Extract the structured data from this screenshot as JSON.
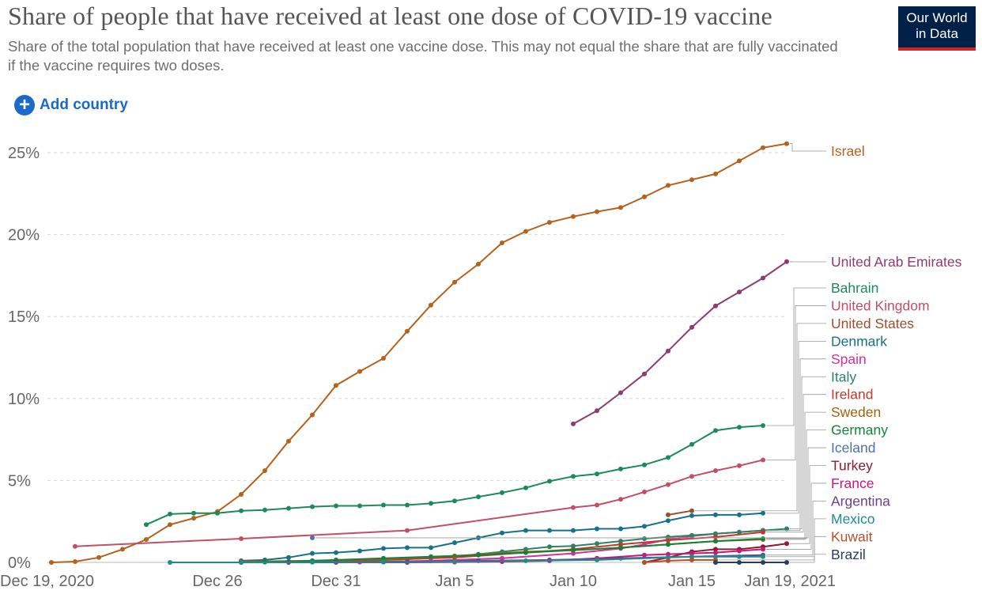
{
  "header": {
    "title": "Share of people that have received at least one dose of COVID-19 vaccine",
    "subtitle": "Share of the total population that have received at least one vaccine dose. This may not equal the share that are fully vaccinated if the vaccine requires two doses.",
    "logo_line1": "Our World",
    "logo_line2": "in Data"
  },
  "controls": {
    "add_country_label": "Add country"
  },
  "colors": {
    "logo_bg": "#002147",
    "logo_accent": "#ce261e",
    "link": "#1b6ac9",
    "grid": "#d9d9d9"
  },
  "chart_data": {
    "type": "line",
    "x_type": "date",
    "x_range": [
      "2020-12-19",
      "2021-01-19"
    ],
    "y_range": [
      0,
      27
    ],
    "y_ticks": [
      0,
      5,
      10,
      15,
      20,
      25
    ],
    "y_tick_labels": [
      "0%",
      "5%",
      "10%",
      "15%",
      "20%",
      "25%"
    ],
    "x_ticks": [
      "2020-12-19",
      "2020-12-26",
      "2020-12-31",
      "2021-01-05",
      "2021-01-10",
      "2021-01-15",
      "2021-01-19"
    ],
    "x_tick_labels": [
      "Dec 19, 2020",
      "Dec 26",
      "Dec 31",
      "Jan 5",
      "Jan 10",
      "Jan 15",
      "Jan 19, 2021"
    ],
    "grid": "horizontal dashed",
    "legend": "right, labels at line ends",
    "series": [
      {
        "name": "Israel",
        "color": "#b5621c",
        "points": [
          [
            "2020-12-19",
            0
          ],
          [
            "2020-12-20",
            0.05
          ],
          [
            "2020-12-21",
            0.3
          ],
          [
            "2020-12-22",
            0.8
          ],
          [
            "2020-12-23",
            1.4
          ],
          [
            "2020-12-24",
            2.3
          ],
          [
            "2020-12-25",
            2.7
          ],
          [
            "2020-12-26",
            3.1
          ],
          [
            "2020-12-27",
            4.15
          ],
          [
            "2020-12-28",
            5.6
          ],
          [
            "2020-12-29",
            7.4
          ],
          [
            "2020-12-30",
            9.0
          ],
          [
            "2020-12-31",
            10.8
          ],
          [
            "2021-01-01",
            11.65
          ],
          [
            "2021-01-02",
            12.45
          ],
          [
            "2021-01-03",
            14.1
          ],
          [
            "2021-01-04",
            15.7
          ],
          [
            "2021-01-05",
            17.1
          ],
          [
            "2021-01-06",
            18.2
          ],
          [
            "2021-01-07",
            19.5
          ],
          [
            "2021-01-08",
            20.2
          ],
          [
            "2021-01-09",
            20.75
          ],
          [
            "2021-01-10",
            21.1
          ],
          [
            "2021-01-11",
            21.4
          ],
          [
            "2021-01-12",
            21.65
          ],
          [
            "2021-01-13",
            22.3
          ],
          [
            "2021-01-14",
            23.0
          ],
          [
            "2021-01-15",
            23.35
          ],
          [
            "2021-01-16",
            23.7
          ],
          [
            "2021-01-17",
            24.5
          ],
          [
            "2021-01-18",
            25.3
          ],
          [
            "2021-01-19",
            25.55
          ]
        ]
      },
      {
        "name": "United Arab Emirates",
        "color": "#8e3b6e",
        "points": [
          [
            "2021-01-10",
            8.45
          ],
          [
            "2021-01-11",
            9.25
          ],
          [
            "2021-01-12",
            10.35
          ],
          [
            "2021-01-13",
            11.5
          ],
          [
            "2021-01-14",
            12.9
          ],
          [
            "2021-01-15",
            14.35
          ],
          [
            "2021-01-16",
            15.65
          ],
          [
            "2021-01-17",
            16.5
          ],
          [
            "2021-01-18",
            17.35
          ],
          [
            "2021-01-19",
            18.35
          ]
        ]
      },
      {
        "name": "Bahrain",
        "color": "#1d8a5a",
        "points": [
          [
            "2020-12-23",
            2.3
          ],
          [
            "2020-12-24",
            2.95
          ],
          [
            "2020-12-25",
            3.0
          ],
          [
            "2020-12-26",
            3.0
          ],
          [
            "2020-12-27",
            3.15
          ],
          [
            "2020-12-28",
            3.2
          ],
          [
            "2020-12-29",
            3.3
          ],
          [
            "2020-12-30",
            3.4
          ],
          [
            "2020-12-31",
            3.45
          ],
          [
            "2021-01-01",
            3.45
          ],
          [
            "2021-01-02",
            3.5
          ],
          [
            "2021-01-03",
            3.5
          ],
          [
            "2021-01-04",
            3.6
          ],
          [
            "2021-01-05",
            3.75
          ],
          [
            "2021-01-06",
            4.0
          ],
          [
            "2021-01-07",
            4.25
          ],
          [
            "2021-01-08",
            4.55
          ],
          [
            "2021-01-09",
            4.95
          ],
          [
            "2021-01-10",
            5.25
          ],
          [
            "2021-01-11",
            5.4
          ],
          [
            "2021-01-12",
            5.7
          ],
          [
            "2021-01-13",
            5.95
          ],
          [
            "2021-01-14",
            6.4
          ],
          [
            "2021-01-15",
            7.2
          ],
          [
            "2021-01-16",
            8.05
          ],
          [
            "2021-01-17",
            8.25
          ],
          [
            "2021-01-18",
            8.35
          ]
        ]
      },
      {
        "name": "United Kingdom",
        "color": "#c15065",
        "points": [
          [
            "2020-12-20",
            0.98
          ],
          [
            "2020-12-27",
            1.45
          ],
          [
            "2021-01-03",
            1.95
          ],
          [
            "2021-01-10",
            3.35
          ],
          [
            "2021-01-11",
            3.5
          ],
          [
            "2021-01-12",
            3.85
          ],
          [
            "2021-01-13",
            4.3
          ],
          [
            "2021-01-14",
            4.75
          ],
          [
            "2021-01-15",
            5.25
          ],
          [
            "2021-01-16",
            5.6
          ],
          [
            "2021-01-17",
            5.9
          ],
          [
            "2021-01-18",
            6.25
          ]
        ]
      },
      {
        "name": "United States",
        "color": "#9a5129",
        "points": [
          [
            "2021-01-14",
            2.9
          ],
          [
            "2021-01-15",
            3.15
          ]
        ]
      },
      {
        "name": "Denmark",
        "color": "#18708b",
        "points": [
          [
            "2020-12-27",
            0.1
          ],
          [
            "2020-12-28",
            0.15
          ],
          [
            "2020-12-29",
            0.3
          ],
          [
            "2020-12-30",
            0.55
          ],
          [
            "2020-12-31",
            0.6
          ],
          [
            "2021-01-01",
            0.7
          ],
          [
            "2021-01-02",
            0.85
          ],
          [
            "2021-01-03",
            0.9
          ],
          [
            "2021-01-04",
            0.9
          ],
          [
            "2021-01-05",
            1.2
          ],
          [
            "2021-01-06",
            1.5
          ],
          [
            "2021-01-07",
            1.8
          ],
          [
            "2021-01-08",
            1.95
          ],
          [
            "2021-01-09",
            1.95
          ],
          [
            "2021-01-10",
            1.95
          ],
          [
            "2021-01-11",
            2.05
          ],
          [
            "2021-01-12",
            2.05
          ],
          [
            "2021-01-13",
            2.2
          ],
          [
            "2021-01-14",
            2.55
          ],
          [
            "2021-01-15",
            2.85
          ],
          [
            "2021-01-16",
            2.9
          ],
          [
            "2021-01-17",
            2.9
          ],
          [
            "2021-01-18",
            3.0
          ]
        ]
      },
      {
        "name": "Spain",
        "color": "#d62fa0",
        "points": [
          [
            "2021-01-01",
            0.02
          ],
          [
            "2021-01-04",
            0.1
          ],
          [
            "2021-01-07",
            0.25
          ],
          [
            "2021-01-10",
            0.55
          ],
          [
            "2021-01-12",
            0.85
          ],
          [
            "2021-01-13",
            1.1
          ],
          [
            "2021-01-14",
            1.4
          ],
          [
            "2021-01-15",
            1.6
          ],
          [
            "2021-01-16",
            1.75
          ],
          [
            "2021-01-17",
            1.85
          ],
          [
            "2021-01-18",
            1.95
          ]
        ]
      },
      {
        "name": "Italy",
        "color": "#2c8465",
        "points": [
          [
            "2020-12-27",
            0.02
          ],
          [
            "2020-12-31",
            0.05
          ],
          [
            "2021-01-03",
            0.2
          ],
          [
            "2021-01-05",
            0.35
          ],
          [
            "2021-01-06",
            0.5
          ],
          [
            "2021-01-07",
            0.65
          ],
          [
            "2021-01-08",
            0.8
          ],
          [
            "2021-01-09",
            0.95
          ],
          [
            "2021-01-10",
            1.0
          ],
          [
            "2021-01-11",
            1.15
          ],
          [
            "2021-01-12",
            1.3
          ],
          [
            "2021-01-13",
            1.45
          ],
          [
            "2021-01-14",
            1.55
          ],
          [
            "2021-01-15",
            1.65
          ],
          [
            "2021-01-16",
            1.75
          ],
          [
            "2021-01-17",
            1.85
          ],
          [
            "2021-01-18",
            1.95
          ],
          [
            "2021-01-19",
            2.05
          ]
        ]
      },
      {
        "name": "Ireland",
        "color": "#c0392b",
        "points": [
          [
            "2020-12-31",
            0.05
          ],
          [
            "2021-01-05",
            0.3
          ],
          [
            "2021-01-10",
            0.8
          ],
          [
            "2021-01-12",
            1.1
          ],
          [
            "2021-01-14",
            1.35
          ],
          [
            "2021-01-16",
            1.55
          ],
          [
            "2021-01-18",
            1.85
          ]
        ]
      },
      {
        "name": "Sweden",
        "color": "#a2620d",
        "points": [
          [
            "2020-12-27",
            0.05
          ],
          [
            "2020-12-30",
            0.1
          ],
          [
            "2021-01-02",
            0.2
          ],
          [
            "2021-01-05",
            0.4
          ],
          [
            "2021-01-08",
            0.65
          ],
          [
            "2021-01-10",
            0.75
          ],
          [
            "2021-01-12",
            0.9
          ],
          [
            "2021-01-14",
            1.1
          ],
          [
            "2021-01-16",
            1.3
          ],
          [
            "2021-01-18",
            1.4
          ]
        ]
      },
      {
        "name": "Germany",
        "color": "#13833a",
        "points": [
          [
            "2020-12-27",
            0.0
          ],
          [
            "2020-12-28",
            0.02
          ],
          [
            "2020-12-29",
            0.05
          ],
          [
            "2020-12-30",
            0.1
          ],
          [
            "2020-12-31",
            0.15
          ],
          [
            "2021-01-02",
            0.25
          ],
          [
            "2021-01-04",
            0.35
          ],
          [
            "2021-01-06",
            0.45
          ],
          [
            "2021-01-08",
            0.6
          ],
          [
            "2021-01-10",
            0.75
          ],
          [
            "2021-01-12",
            0.9
          ],
          [
            "2021-01-14",
            1.1
          ],
          [
            "2021-01-16",
            1.3
          ],
          [
            "2021-01-18",
            1.45
          ]
        ]
      },
      {
        "name": "Iceland",
        "color": "#4a73a8",
        "points": [
          [
            "2020-12-30",
            1.5
          ]
        ]
      },
      {
        "name": "Turkey",
        "color": "#8e1b2e",
        "points": [
          [
            "2021-01-13",
            0.0
          ],
          [
            "2021-01-14",
            0.3
          ],
          [
            "2021-01-15",
            0.65
          ],
          [
            "2021-01-16",
            0.8
          ],
          [
            "2021-01-17",
            0.8
          ],
          [
            "2021-01-18",
            0.95
          ],
          [
            "2021-01-19",
            1.15
          ]
        ]
      },
      {
        "name": "France",
        "color": "#c7197b",
        "points": [
          [
            "2020-12-27",
            0.0
          ],
          [
            "2020-12-31",
            0.0
          ],
          [
            "2021-01-03",
            0.0
          ],
          [
            "2021-01-05",
            0.02
          ],
          [
            "2021-01-07",
            0.05
          ],
          [
            "2021-01-09",
            0.1
          ],
          [
            "2021-01-11",
            0.25
          ],
          [
            "2021-01-13",
            0.45
          ],
          [
            "2021-01-14",
            0.5
          ],
          [
            "2021-01-15",
            0.55
          ],
          [
            "2021-01-16",
            0.6
          ],
          [
            "2021-01-17",
            0.7
          ],
          [
            "2021-01-18",
            0.8
          ]
        ]
      },
      {
        "name": "Argentina",
        "color": "#6d3e91",
        "points": [
          [
            "2020-12-29",
            0.0
          ],
          [
            "2020-12-31",
            0.02
          ],
          [
            "2021-01-03",
            0.05
          ],
          [
            "2021-01-06",
            0.1
          ],
          [
            "2021-01-09",
            0.15
          ],
          [
            "2021-01-12",
            0.25
          ],
          [
            "2021-01-15",
            0.35
          ],
          [
            "2021-01-18",
            0.45
          ]
        ]
      },
      {
        "name": "Mexico",
        "color": "#1f8c8c",
        "points": [
          [
            "2020-12-24",
            0.0
          ],
          [
            "2020-12-27",
            0.0
          ],
          [
            "2020-12-30",
            0.01
          ],
          [
            "2021-01-02",
            0.02
          ],
          [
            "2021-01-05",
            0.05
          ],
          [
            "2021-01-08",
            0.1
          ],
          [
            "2021-01-11",
            0.15
          ],
          [
            "2021-01-14",
            0.3
          ],
          [
            "2021-01-15",
            0.35
          ],
          [
            "2021-01-16",
            0.35
          ],
          [
            "2021-01-17",
            0.35
          ],
          [
            "2021-01-18",
            0.35
          ]
        ]
      },
      {
        "name": "Kuwait",
        "color": "#b2522c",
        "points": [
          [
            "2021-01-13",
            0.0
          ],
          [
            "2021-01-14",
            0.1
          ],
          [
            "2021-01-15",
            0.15
          ],
          [
            "2021-01-16",
            0.15
          ]
        ]
      },
      {
        "name": "Brazil",
        "color": "#2a3d5c",
        "points": [
          [
            "2021-01-16",
            0.0
          ],
          [
            "2021-01-17",
            0.0
          ],
          [
            "2021-01-18",
            0.0
          ],
          [
            "2021-01-19",
            0.0
          ]
        ]
      }
    ]
  }
}
